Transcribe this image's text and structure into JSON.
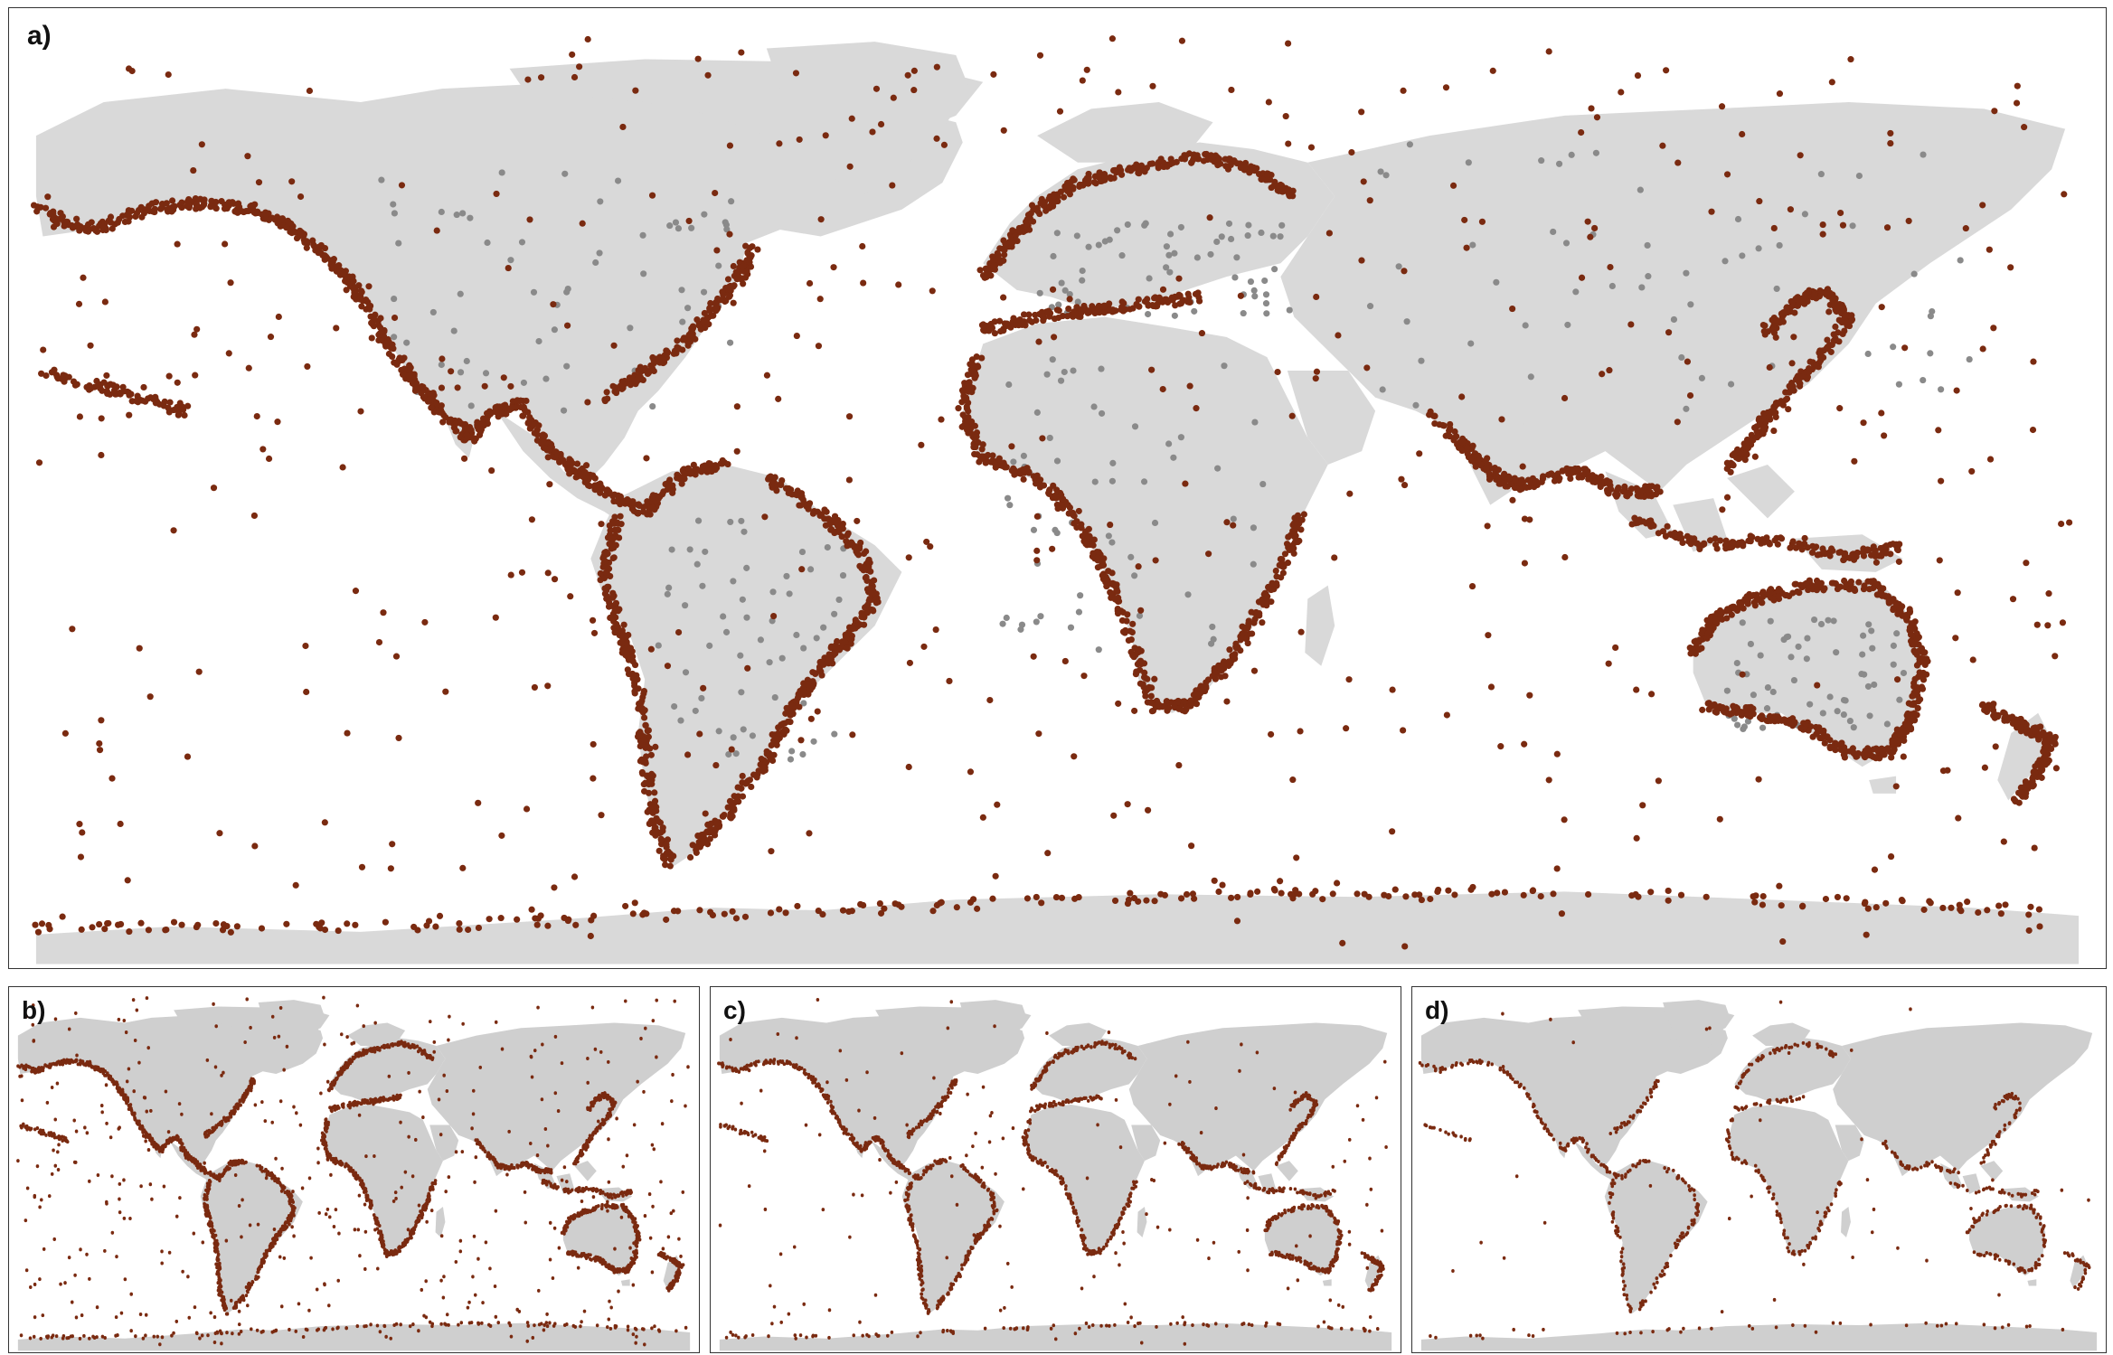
{
  "panels": [
    {
      "id": "a",
      "label": "a)"
    },
    {
      "id": "b",
      "label": "b)"
    },
    {
      "id": "c",
      "label": "c)"
    },
    {
      "id": "d",
      "label": "d)"
    }
  ],
  "colors": {
    "land": "#d9d9d9",
    "land_small": "#cfcfcf",
    "record_coastal": "#7a2a10",
    "record_inland": "#8a8a8a",
    "border": "#333333"
  }
}
